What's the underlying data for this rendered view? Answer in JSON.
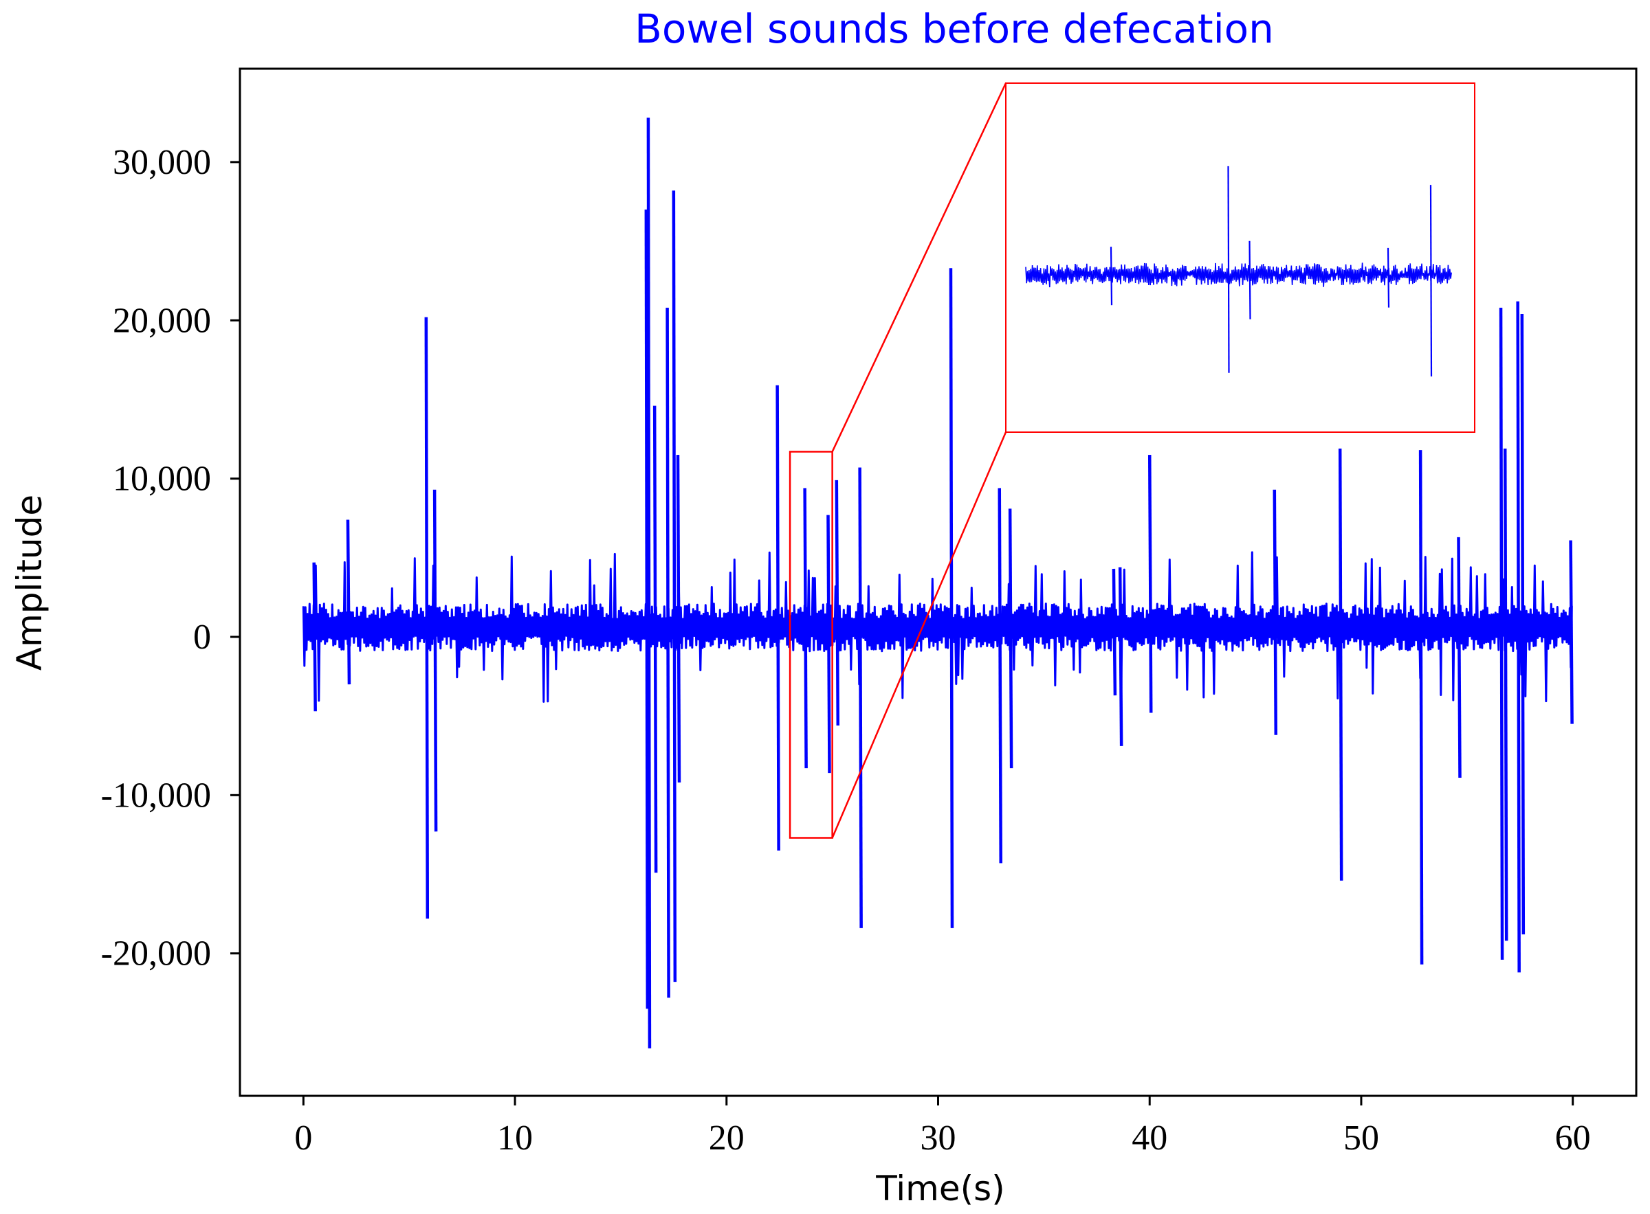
{
  "colors": {
    "signal": "#0000ff",
    "title": "#0000ff",
    "highlight": "#ff0000",
    "axis": "#000000"
  },
  "chart_data": {
    "type": "line",
    "title": "Bowel sounds before defecation",
    "xlabel": "Time(s)",
    "ylabel": "Amplitude",
    "xlim": [
      -3,
      63
    ],
    "ylim": [
      -29000,
      35900
    ],
    "xticks": [
      0,
      10,
      20,
      30,
      40,
      50,
      60
    ],
    "xtick_labels": [
      "0",
      "10",
      "20",
      "30",
      "40",
      "50",
      "60"
    ],
    "yticks": [
      -20000,
      -10000,
      0,
      10000,
      20000,
      30000
    ],
    "ytick_labels": [
      "-20,000",
      "-10,000",
      "0",
      "10,000",
      "20,000",
      "30,000"
    ],
    "grid": false,
    "baseline_noise_amplitude": 1500,
    "spikes": [
      {
        "t": 0.5,
        "pos": 4700,
        "neg": -4700
      },
      {
        "t": 2.1,
        "pos": 7400,
        "neg": -3000
      },
      {
        "t": 5.8,
        "pos": 20200,
        "neg": -17800
      },
      {
        "t": 6.2,
        "pos": 9300,
        "neg": -12300
      },
      {
        "t": 16.2,
        "pos": 27000,
        "neg": -23500
      },
      {
        "t": 16.3,
        "pos": 32800,
        "neg": -26000
      },
      {
        "t": 16.6,
        "pos": 14600,
        "neg": -14900
      },
      {
        "t": 17.2,
        "pos": 20800,
        "neg": -22800
      },
      {
        "t": 17.5,
        "pos": 28200,
        "neg": -21800
      },
      {
        "t": 17.7,
        "pos": 11500,
        "neg": -9200
      },
      {
        "t": 22.4,
        "pos": 15900,
        "neg": -13500
      },
      {
        "t": 23.7,
        "pos": 9400,
        "neg": -8300
      },
      {
        "t": 24.8,
        "pos": 7700,
        "neg": -8600
      },
      {
        "t": 25.2,
        "pos": 9900,
        "neg": -5600
      },
      {
        "t": 26.3,
        "pos": 10700,
        "neg": -18400
      },
      {
        "t": 30.6,
        "pos": 23300,
        "neg": -18400
      },
      {
        "t": 32.9,
        "pos": 9400,
        "neg": -14300
      },
      {
        "t": 33.4,
        "pos": 8100,
        "neg": -8300
      },
      {
        "t": 38.3,
        "pos": 4300,
        "neg": -3700
      },
      {
        "t": 38.6,
        "pos": 4400,
        "neg": -6900
      },
      {
        "t": 40.0,
        "pos": 11500,
        "neg": -4800
      },
      {
        "t": 45.9,
        "pos": 9300,
        "neg": -6200
      },
      {
        "t": 49.0,
        "pos": 11900,
        "neg": -15400
      },
      {
        "t": 52.8,
        "pos": 11800,
        "neg": -20700
      },
      {
        "t": 54.6,
        "pos": 6300,
        "neg": -8900
      },
      {
        "t": 56.6,
        "pos": 20800,
        "neg": -20400
      },
      {
        "t": 56.8,
        "pos": 11900,
        "neg": -19200
      },
      {
        "t": 57.4,
        "pos": 21200,
        "neg": -21200
      },
      {
        "t": 57.6,
        "pos": 20400,
        "neg": -18800
      },
      {
        "t": 59.9,
        "pos": 6100,
        "neg": -5500
      }
    ],
    "zoom_region": {
      "x_range": [
        23.0,
        25.0
      ],
      "y_range": [
        -12700,
        11700
      ]
    },
    "inset": {
      "source_x_range": [
        23.0,
        25.0
      ],
      "spikes": [
        {
          "t": 23.4,
          "pos": 2400,
          "neg": -2600
        },
        {
          "t": 23.95,
          "pos": 9300,
          "neg": -8400
        },
        {
          "t": 24.05,
          "pos": 2900,
          "neg": -3800
        },
        {
          "t": 24.7,
          "pos": 2300,
          "neg": -2800
        },
        {
          "t": 24.9,
          "pos": 7700,
          "neg": -8700
        }
      ]
    }
  }
}
